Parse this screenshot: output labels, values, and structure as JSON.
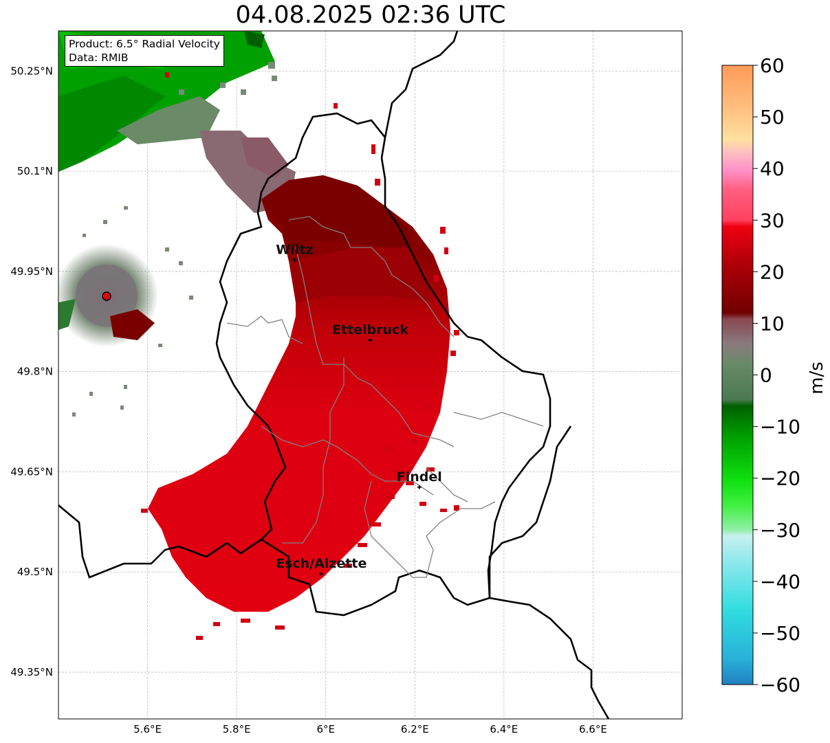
{
  "title": "04.08.2025 02:36 UTC",
  "info": {
    "product": "Product: 6.5° Radial Velocity",
    "source": "Data: RMIB"
  },
  "map": {
    "lon_range": [
      5.4,
      6.8
    ],
    "lat_range": [
      49.3,
      50.3
    ],
    "gridlines": true,
    "lon_ticks": [
      {
        "value": 5.6,
        "label": "5.6°E"
      },
      {
        "value": 5.8,
        "label": "5.8°E"
      },
      {
        "value": 6.0,
        "label": "6°E"
      },
      {
        "value": 6.2,
        "label": "6.2°E"
      },
      {
        "value": 6.4,
        "label": "6.4°E"
      },
      {
        "value": 6.6,
        "label": "6.6°E"
      }
    ],
    "lat_ticks": [
      {
        "value": 50.25,
        "label": "50.25°N"
      },
      {
        "value": 50.1,
        "label": "50.1°N"
      },
      {
        "value": 49.95,
        "label": "49.95°N"
      },
      {
        "value": 49.8,
        "label": "49.8°N"
      },
      {
        "value": 49.65,
        "label": "49.65°N"
      },
      {
        "value": 49.5,
        "label": "49.5°N"
      },
      {
        "value": 49.35,
        "label": "49.35°N"
      }
    ],
    "cities": [
      {
        "name": "Wiltz",
        "lon": 5.93,
        "lat": 49.967
      },
      {
        "name": "Ettelbruck",
        "lon": 6.1,
        "lat": 49.847
      },
      {
        "name": "Findel",
        "lon": 6.21,
        "lat": 49.627
      },
      {
        "name": "Esch/Alzette",
        "lon": 5.99,
        "lat": 49.497
      }
    ],
    "radar_site": {
      "lon": 5.505,
      "lat": 49.914
    }
  },
  "colorbar": {
    "unit": "m/s",
    "range": [
      -60,
      60
    ],
    "ticks": [
      {
        "value": 60,
        "label": "60"
      },
      {
        "value": 50,
        "label": "50"
      },
      {
        "value": 40,
        "label": "40"
      },
      {
        "value": 30,
        "label": "30"
      },
      {
        "value": 20,
        "label": "20"
      },
      {
        "value": 10,
        "label": "10"
      },
      {
        "value": 0,
        "label": "0"
      },
      {
        "value": -10,
        "label": "−10"
      },
      {
        "value": -20,
        "label": "−20"
      },
      {
        "value": -30,
        "label": "−30"
      },
      {
        "value": -40,
        "label": "−40"
      },
      {
        "value": -50,
        "label": "−50"
      },
      {
        "value": -60,
        "label": "−60"
      }
    ],
    "colors": {
      "dark_blue": "#2080c0",
      "cyan": "#30dde0",
      "light_cyan": "#b8f0f0",
      "light_green": "#90f0a8",
      "bright_green": "#10e010",
      "green": "#00a000",
      "dark_green": "#006000",
      "gray_green": "#5a8a60",
      "gray": "#8a7a80",
      "gray_red": "#8a4048",
      "dark_red": "#700000",
      "red": "#e00010",
      "pink": "#ff5070",
      "light_pink": "#ff90c8",
      "peach": "#ffd0a0",
      "orange": "#ffa060"
    }
  }
}
